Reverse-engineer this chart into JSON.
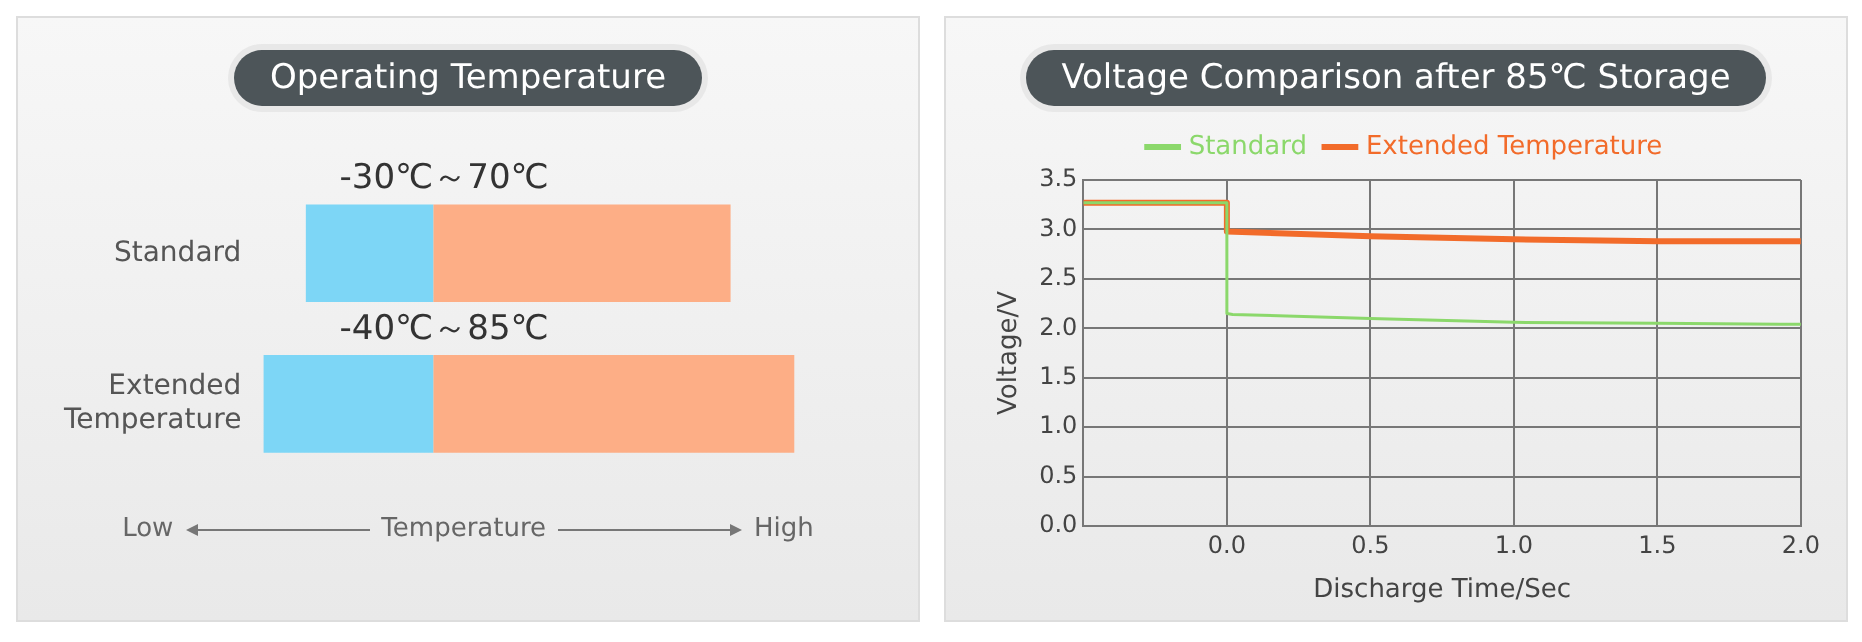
{
  "chart_data": [
    {
      "type": "bar",
      "title": "Operating Temperature",
      "orientation": "horizontal",
      "stacked": true,
      "categories": [
        "Standard",
        "Extended Temperature"
      ],
      "series": [
        {
          "color": "#7dd6f6",
          "values": [
            -30,
            -40
          ],
          "value_labels": [
            "-30℃",
            "-40℃"
          ]
        },
        {
          "color": "#fdae86",
          "values": [
            70,
            85
          ],
          "value_labels": [
            "～70℃",
            "～85℃"
          ]
        }
      ],
      "xlabel": "Temperature",
      "tick_labels": "y",
      "grid": false,
      "legend": false,
      "annotations": [
        "Low",
        "High"
      ]
    },
    {
      "type": "line",
      "title": "Voltage Comparison after 85℃ Storage",
      "xlabel": "Discharge Time/Sec",
      "ylabel": "Voltage/V",
      "xlim": [
        -0.5,
        2.0
      ],
      "ylim": [
        0,
        3.5
      ],
      "xticks": [
        {
          "value": 0,
          "label": "0.0"
        },
        {
          "value": 0.5,
          "label": "0.5"
        },
        {
          "value": 1,
          "label": "1.0"
        },
        {
          "value": 1.5,
          "label": "1.5"
        },
        {
          "value": 2,
          "label": "2.0"
        }
      ],
      "yticks": [
        {
          "value": 0,
          "label": "0.0"
        },
        {
          "value": 0.5,
          "label": "0.5"
        },
        {
          "value": 1,
          "label": "1.0"
        },
        {
          "value": 1.5,
          "label": "1.5"
        },
        {
          "value": 2,
          "label": "2.0"
        },
        {
          "value": 2.5,
          "label": "2.5"
        },
        {
          "value": 3,
          "label": "3.0"
        },
        {
          "value": 3.5,
          "label": "3.5"
        }
      ],
      "grid": true,
      "legend": "top",
      "marker": "none",
      "line_style": "solid",
      "series": [
        {
          "name": "Standard",
          "color": "#8bd86b",
          "x": [
            -0.5,
            0,
            0,
            0.02,
            0.5,
            1,
            1.5,
            2
          ],
          "values": [
            3.27,
            3.27,
            2.15,
            2.14,
            2.1,
            2.06,
            2.05,
            2.04
          ]
        },
        {
          "name": "Extended Temperature",
          "color": "#f26b2a",
          "x": [
            -0.5,
            0,
            0,
            0.5,
            1,
            1.5,
            2
          ],
          "values": [
            3.27,
            3.27,
            2.98,
            2.93,
            2.9,
            2.88,
            2.88
          ]
        }
      ]
    }
  ]
}
